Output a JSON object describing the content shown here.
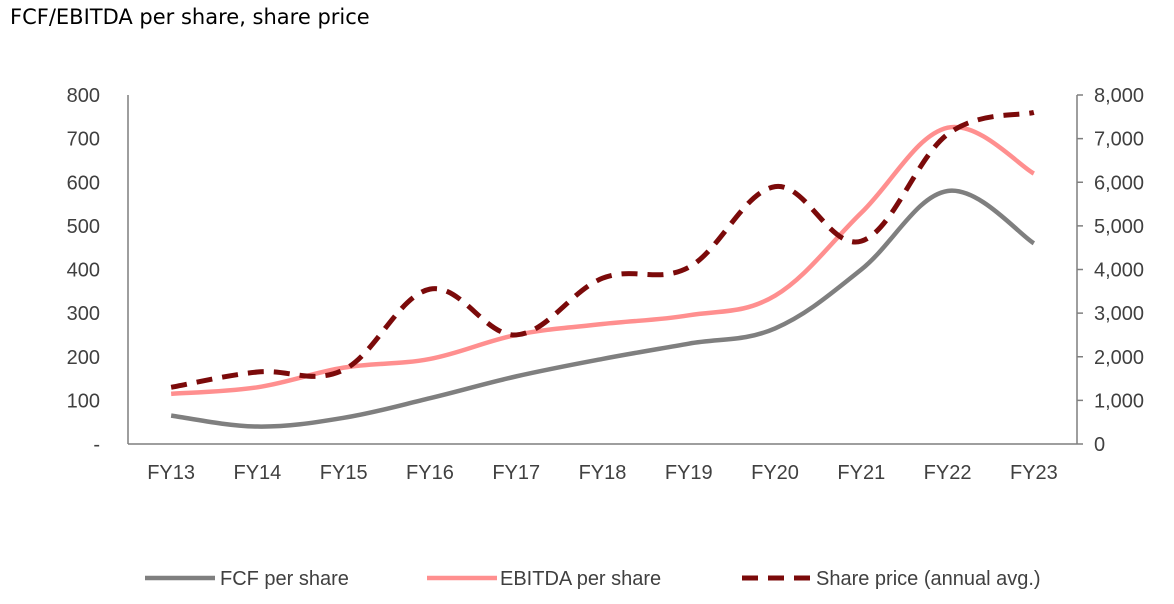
{
  "title": "FCF/EBITDA per share, share price",
  "chart_data": {
    "type": "line",
    "title": "FCF/EBITDA per share, share price",
    "categories": [
      "FY13",
      "FY14",
      "FY15",
      "FY16",
      "FY17",
      "FY18",
      "FY19",
      "FY20",
      "FY21",
      "FY22",
      "FY23"
    ],
    "series": [
      {
        "name": "FCF per share",
        "axis": "left",
        "color": "#7F7F7F",
        "dash": "solid",
        "values": [
          65,
          40,
          60,
          105,
          155,
          195,
          230,
          265,
          400,
          580,
          460
        ]
      },
      {
        "name": "EBITDA per share",
        "axis": "left",
        "color": "#FF8F8F",
        "dash": "solid",
        "values": [
          115,
          130,
          175,
          195,
          250,
          275,
          295,
          340,
          530,
          725,
          620
        ]
      },
      {
        "name": "Share price (annual avg.)",
        "axis": "right",
        "color": "#7B0A0A",
        "dash": "dashed",
        "values": [
          1300,
          1650,
          1700,
          3550,
          2500,
          3800,
          4050,
          5900,
          4650,
          7100,
          7600
        ]
      }
    ],
    "y_left": {
      "min": 0,
      "max": 800,
      "ticks": [
        "-",
        "100",
        "200",
        "300",
        "400",
        "500",
        "600",
        "700",
        "800"
      ]
    },
    "y_right": {
      "min": 0,
      "max": 8000,
      "ticks": [
        "0",
        "1,000",
        "2,000",
        "3,000",
        "4,000",
        "5,000",
        "6,000",
        "7,000",
        "8,000"
      ]
    },
    "grid": false,
    "legend_position": "bottom"
  }
}
